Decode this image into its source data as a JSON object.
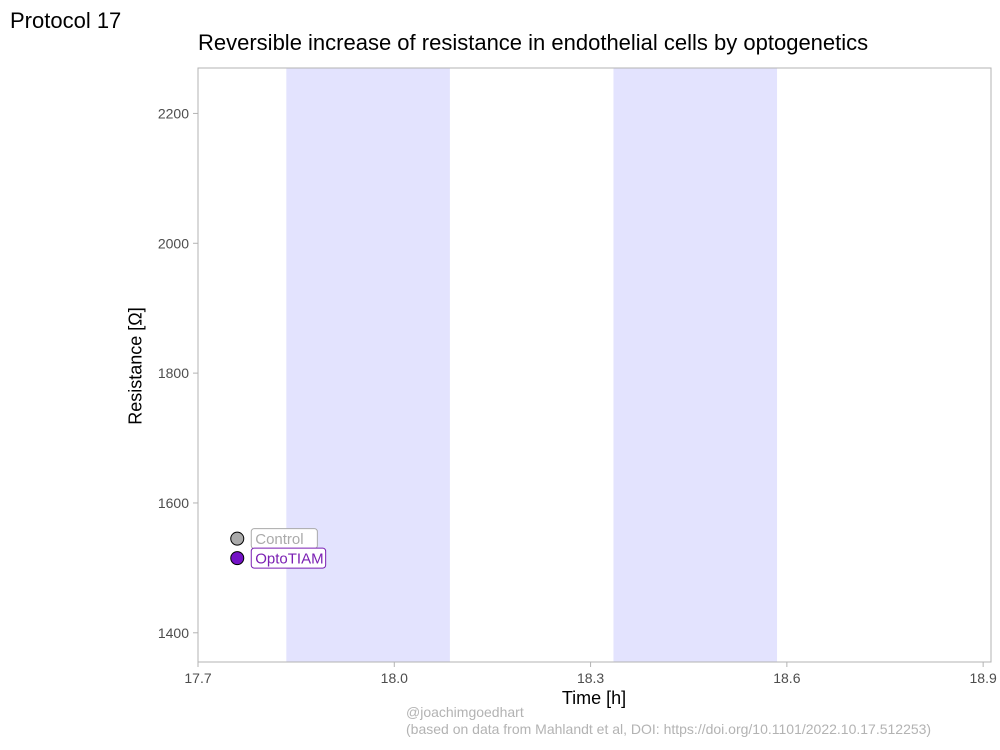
{
  "protocol_label": "Protocol 17",
  "credit": {
    "handle": "@joachimgoedhart",
    "source": "(based on data from Mahlandt et al, DOI: https://doi.org/10.1101/2022.10.17.512253)"
  },
  "colors": {
    "light_band": "#e3e3fe",
    "control": "#aaaaaa",
    "control_label": "#aaaaaa",
    "optotiam": "#7412c6",
    "optotiam_label": "#7a1fb3",
    "axis": "#b3b3b3",
    "tick_text": "#4d4d4d"
  },
  "chart_data": {
    "type": "line",
    "title": "Reversible increase of resistance in endothelial cells by optogenetics",
    "xlabel": "Time [h]",
    "ylabel": "Resistance [Ω]",
    "xlim": [
      17.7,
      18.912
    ],
    "ylim": [
      1355,
      2270
    ],
    "x_ticks": [
      17.7,
      18.0,
      18.3,
      18.6,
      18.9
    ],
    "x_tick_labels": [
      "17.7",
      "18.0",
      "18.3",
      "18.6",
      "18.9"
    ],
    "y_ticks": [
      1400,
      1600,
      1800,
      2000,
      2200
    ],
    "y_tick_labels": [
      "1400",
      "1600",
      "1800",
      "2000",
      "2200"
    ],
    "light_periods": [
      [
        17.835,
        18.085
      ],
      [
        18.335,
        18.585
      ]
    ],
    "series": [
      {
        "name": "Control",
        "points": [
          [
            17.76,
            1545
          ]
        ]
      },
      {
        "name": "OptoTIAM",
        "points": [
          [
            17.76,
            1515
          ]
        ]
      }
    ],
    "grid": false
  }
}
